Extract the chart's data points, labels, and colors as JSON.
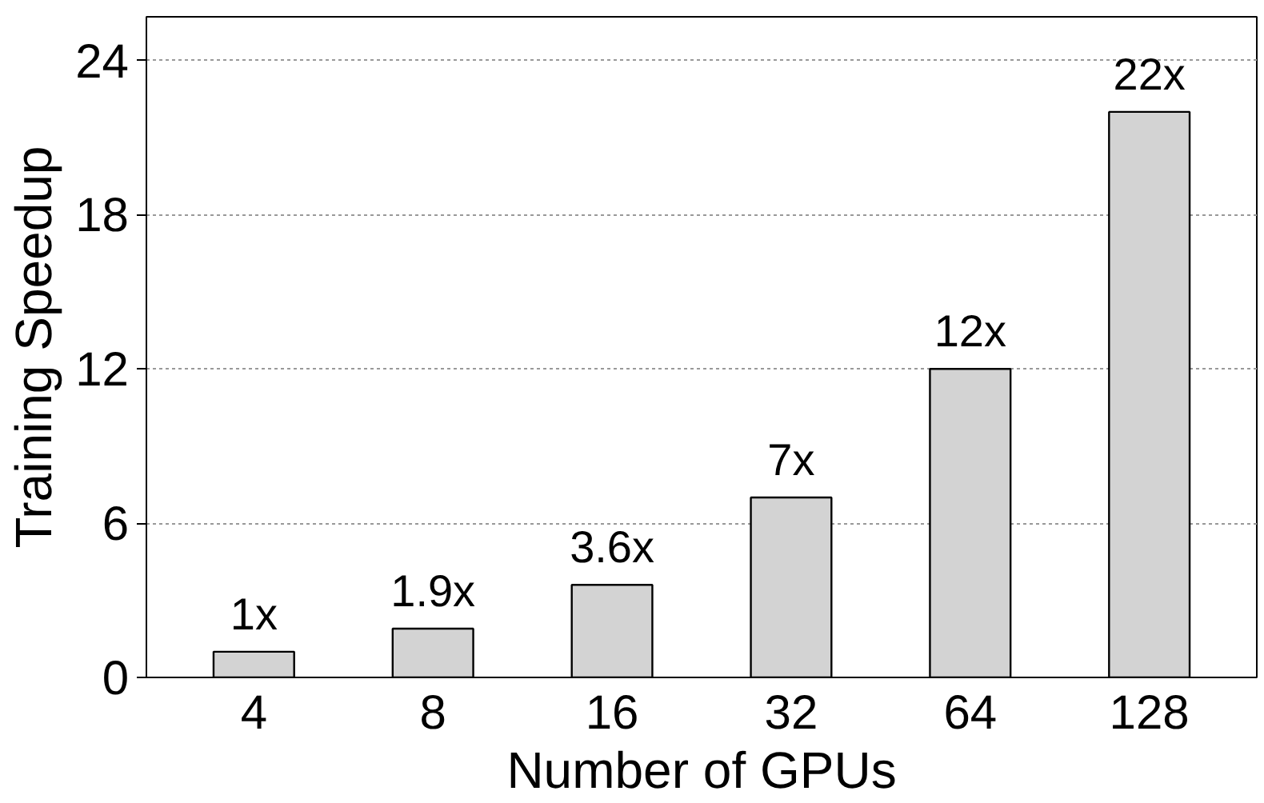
{
  "chart_data": {
    "type": "bar",
    "xlabel": "Number of GPUs",
    "ylabel": "Training Speedup",
    "categories": [
      "4",
      "8",
      "16",
      "32",
      "64",
      "128"
    ],
    "values": [
      1,
      1.9,
      3.6,
      7,
      12,
      22
    ],
    "value_labels": [
      "1x",
      "1.9x",
      "3.6x",
      "7x",
      "12x",
      "22x"
    ],
    "color": "#d3d3d3",
    "ylim": [
      0,
      25.7
    ],
    "yticks": [
      0,
      6,
      12,
      18,
      24
    ],
    "grid": "y"
  }
}
